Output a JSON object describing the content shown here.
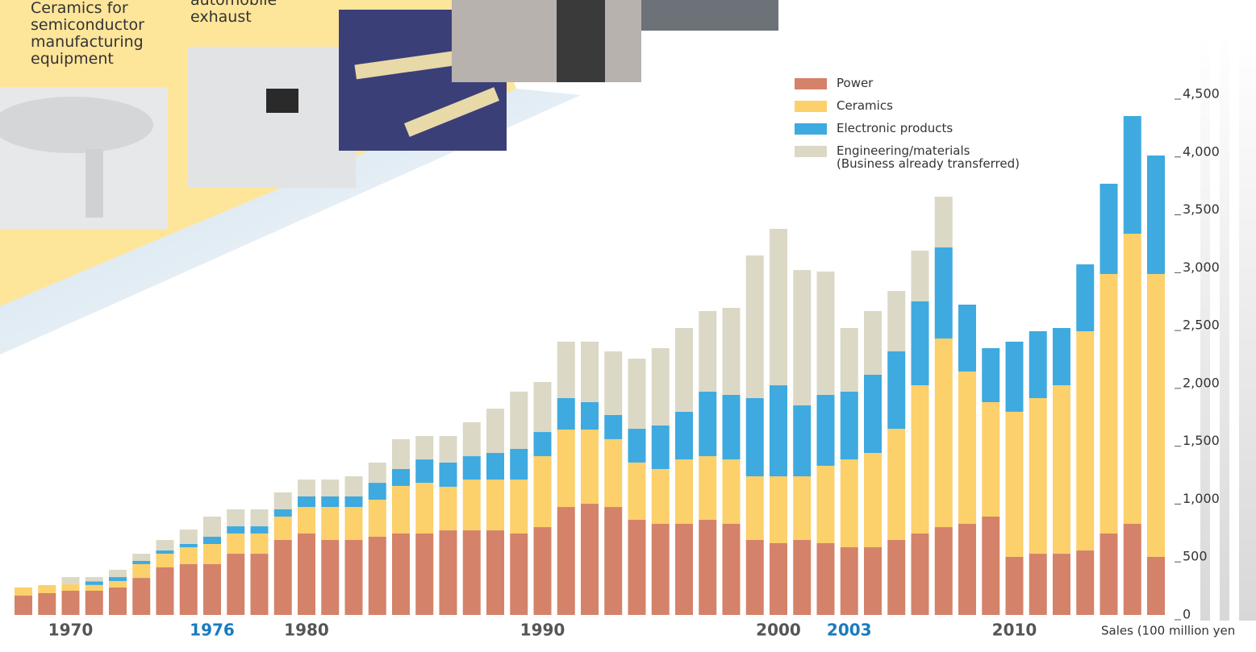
{
  "captions": [
    "Ceramics for\nsemiconductor\nmanufacturing\nequipment",
    "automobile\nexhaust"
  ],
  "chart_data": {
    "type": "stacked_bar",
    "y_axis_label": "Sales (100 million yen",
    "categories": [
      null,
      null,
      "1970",
      null,
      null,
      null,
      null,
      null,
      "1976",
      null,
      null,
      null,
      "1980",
      null,
      null,
      null,
      null,
      null,
      null,
      null,
      null,
      null,
      "1990",
      null,
      null,
      null,
      null,
      null,
      null,
      null,
      null,
      null,
      "2000",
      null,
      null,
      "2003",
      null,
      null,
      null,
      null,
      null,
      null,
      "2010",
      null,
      null,
      null,
      null,
      null,
      null
    ],
    "highlighted_labels": [
      "1976",
      "2003"
    ],
    "highlight_color": "#1a7bbf",
    "label_color": "#555555",
    "series": [
      {
        "name": "Power",
        "color": "#d4826a",
        "values": [
          167,
          188,
          209,
          209,
          237,
          320,
          411,
          439,
          439,
          529,
          529,
          648,
          704,
          648,
          648,
          676,
          704,
          704,
          731,
          731,
          731,
          704,
          759,
          933,
          961,
          933,
          822,
          787,
          787,
          822,
          787,
          648,
          620,
          648,
          620,
          585,
          585,
          648,
          704,
          759,
          787,
          850,
          502,
          529,
          529,
          557,
          704,
          787,
          502
        ]
      },
      {
        "name": "Ceramics",
        "color": "#fcd06a",
        "values": [
          70,
          70,
          56,
          50,
          56,
          119,
          118,
          146,
          174,
          175,
          175,
          202,
          229,
          285,
          285,
          320,
          411,
          438,
          377,
          439,
          439,
          466,
          613,
          669,
          641,
          586,
          495,
          474,
          557,
          550,
          557,
          550,
          578,
          550,
          669,
          759,
          815,
          961,
          1281,
          1630,
          1317,
          989,
          1254,
          1345,
          1456,
          1895,
          2243,
          2508,
          2445
        ]
      },
      {
        "name": "Electronic products",
        "color": "#3eaadf",
        "values": [
          0,
          0,
          0,
          30,
          34,
          28,
          28,
          28,
          63,
          62,
          62,
          63,
          91,
          91,
          91,
          146,
          146,
          202,
          209,
          202,
          230,
          265,
          209,
          272,
          237,
          209,
          292,
          376,
          412,
          558,
          558,
          676,
          787,
          613,
          613,
          586,
          676,
          669,
          725,
          788,
          578,
          467,
          606,
          578,
          495,
          578,
          780,
          1017,
          1024
        ]
      },
      {
        "name": "Engineering/materials\n(Business already transferred)",
        "color": "#dcd8c6",
        "values": [
          0,
          0,
          62,
          38,
          63,
          62,
          91,
          125,
          174,
          147,
          147,
          146,
          146,
          146,
          174,
          175,
          258,
          202,
          229,
          293,
          383,
          495,
          432,
          488,
          523,
          550,
          606,
          669,
          724,
          696,
          752,
          1233,
          1352,
          1170,
          1066,
          550,
          550,
          522,
          439,
          438,
          0,
          0,
          0,
          0,
          0,
          0,
          0,
          0,
          0
        ]
      }
    ],
    "ylim": [
      0,
      4500
    ],
    "yticks": [
      0,
      500,
      {
        "value": 1000,
        "label": "1,000"
      },
      {
        "value": 1500,
        "label": "1,500"
      },
      {
        "value": 2000,
        "label": "2,000"
      },
      {
        "value": 2500,
        "label": "2,500"
      },
      {
        "value": 3000,
        "label": "3,000"
      },
      {
        "value": 3500,
        "label": "3,500"
      },
      {
        "value": 4000,
        "label": "4,000"
      },
      {
        "value": 4500,
        "label": "4,500"
      }
    ]
  }
}
